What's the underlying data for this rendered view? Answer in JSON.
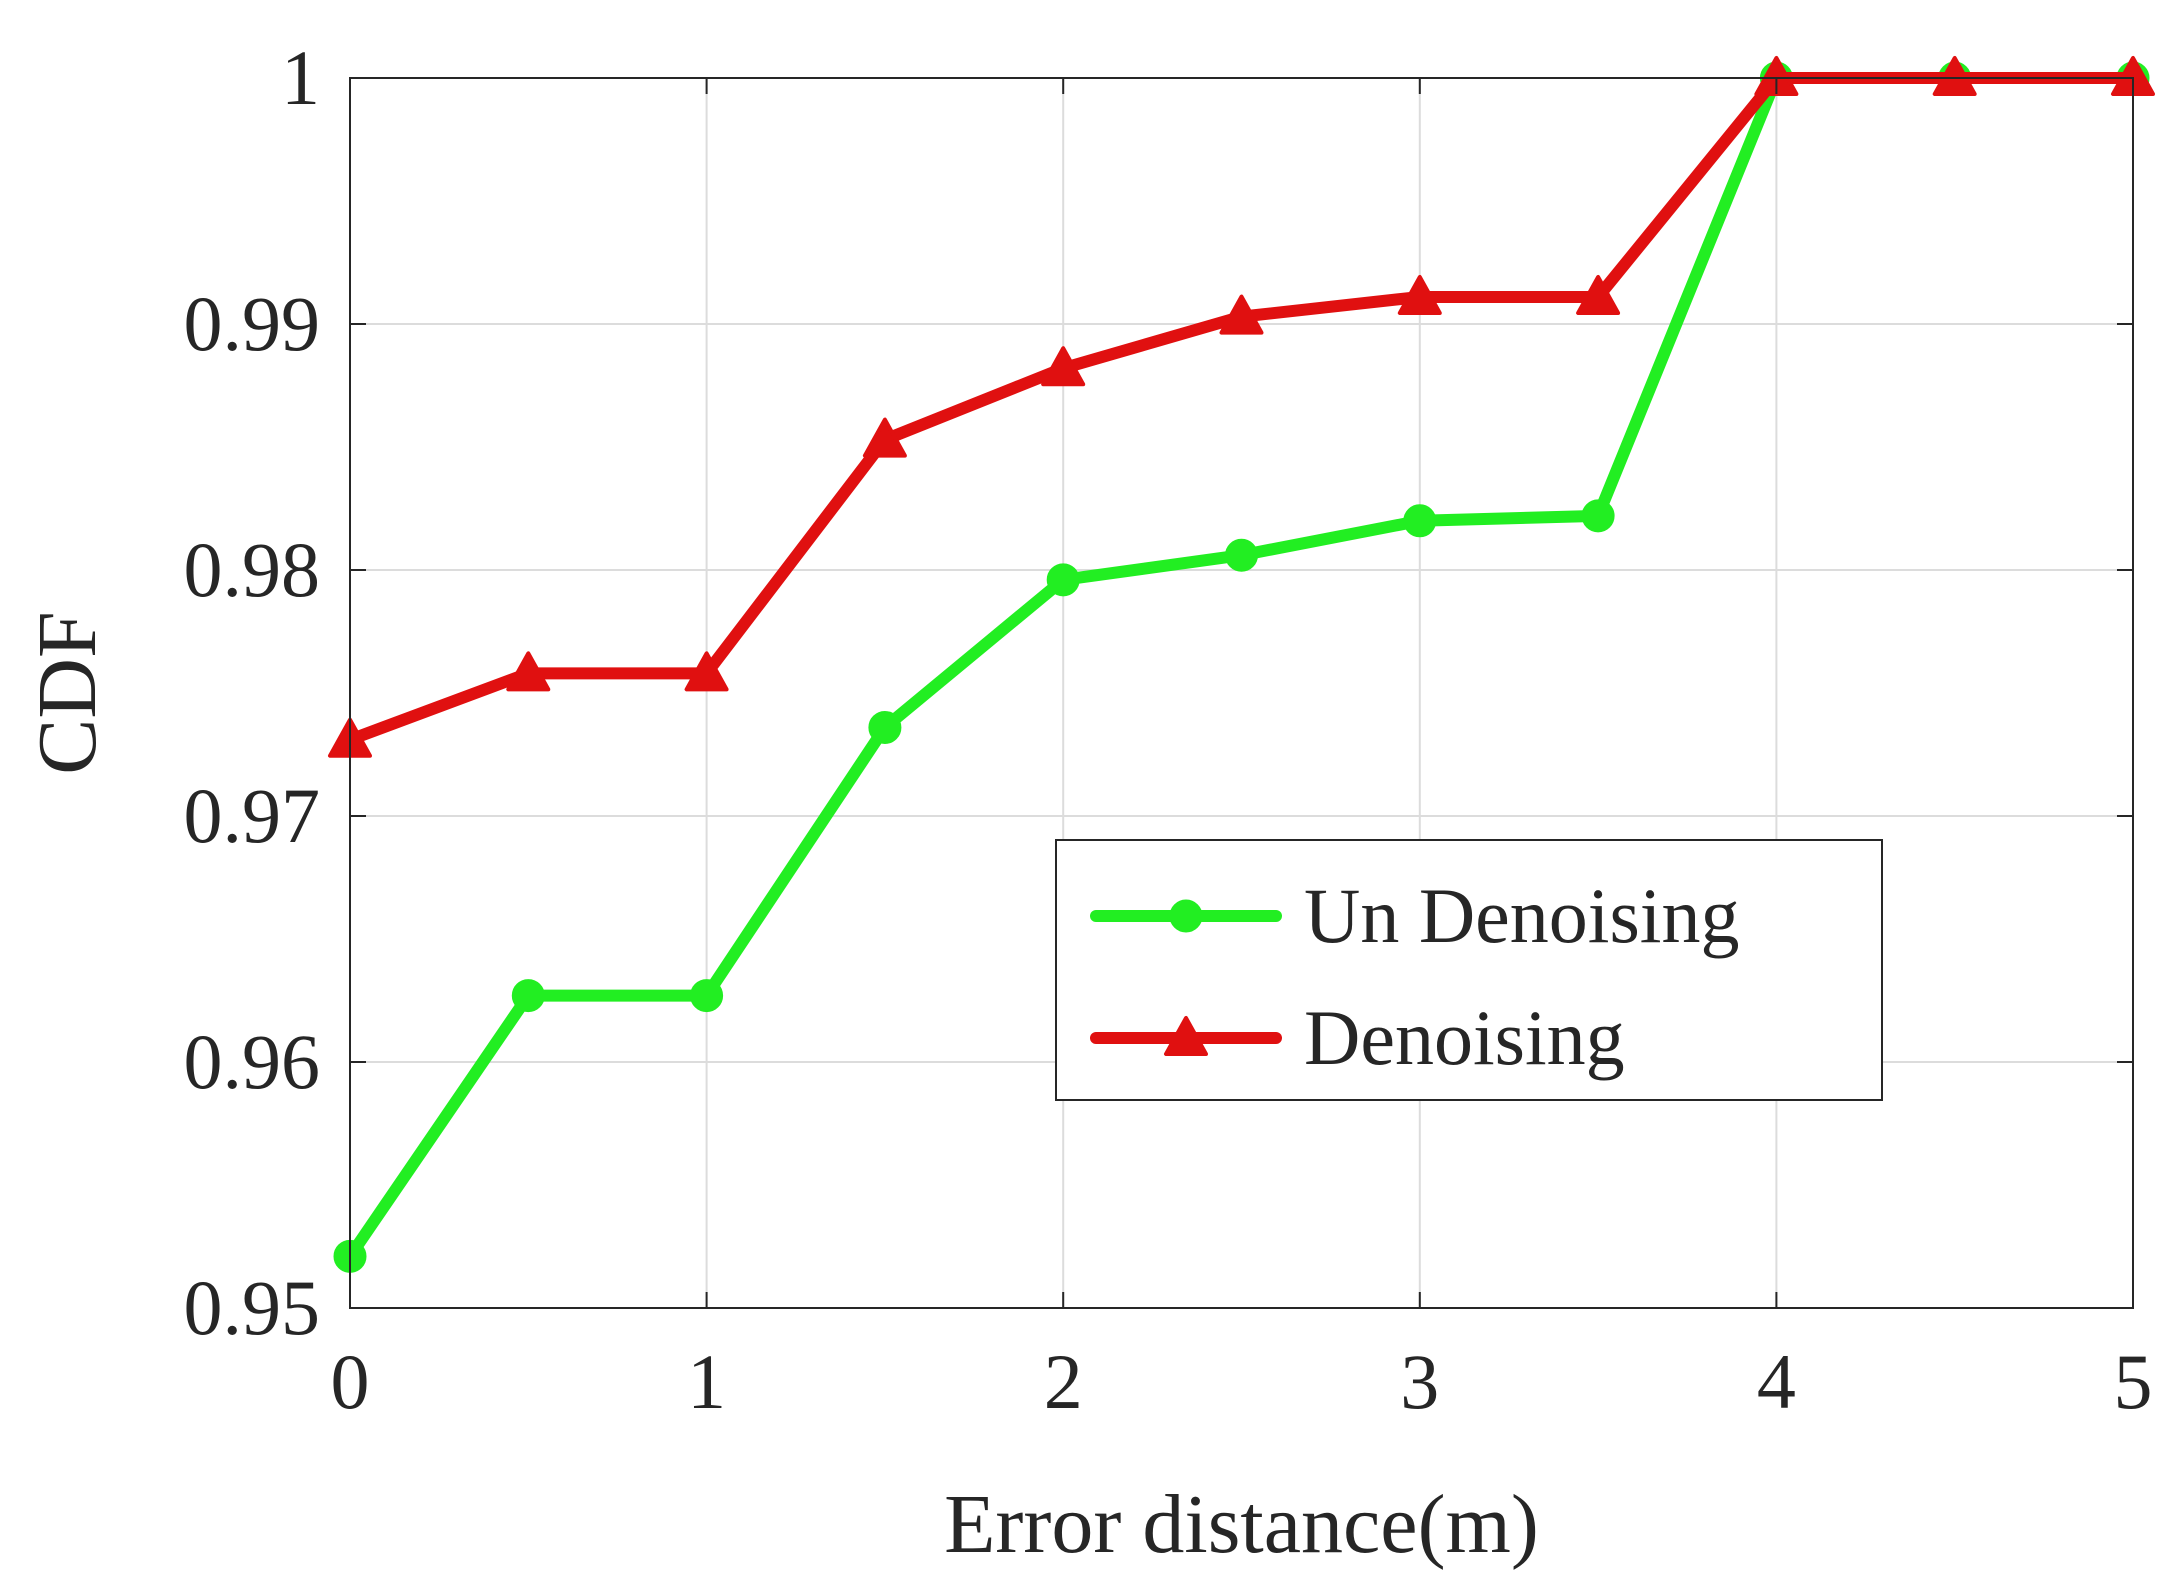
{
  "chart_data": {
    "type": "line",
    "title": "",
    "xlabel": "Error distance(m)",
    "ylabel": "CDF",
    "xlim": [
      0,
      5
    ],
    "ylim": [
      0.95,
      1
    ],
    "xticks": [
      0,
      1,
      2,
      3,
      4,
      5
    ],
    "xtick_labels": [
      "0",
      "1",
      "2",
      "3",
      "4",
      "5"
    ],
    "yticks": [
      0.95,
      0.96,
      0.97,
      0.98,
      0.99,
      1
    ],
    "ytick_labels": [
      "0.95",
      "0.96",
      "0.97",
      "0.98",
      "0.99",
      "1"
    ],
    "grid": true,
    "legend_position": "center-right",
    "x": [
      0,
      0.5,
      1,
      1.5,
      2,
      2.5,
      3,
      3.5,
      4,
      4.5,
      5
    ],
    "series": [
      {
        "name": "Un Denoising",
        "color": "#22ee22",
        "marker": "circle",
        "values": [
          0.9521,
          0.9627,
          0.9627,
          0.9736,
          0.9796,
          0.9806,
          0.982,
          0.9822,
          1.0,
          1.0,
          1.0
        ]
      },
      {
        "name": "Denoising",
        "color": "#e01010",
        "marker": "triangle",
        "values": [
          0.9731,
          0.9758,
          0.9758,
          0.9853,
          0.9882,
          0.9903,
          0.9911,
          0.9911,
          1.0,
          1.0,
          1.0
        ]
      }
    ]
  }
}
